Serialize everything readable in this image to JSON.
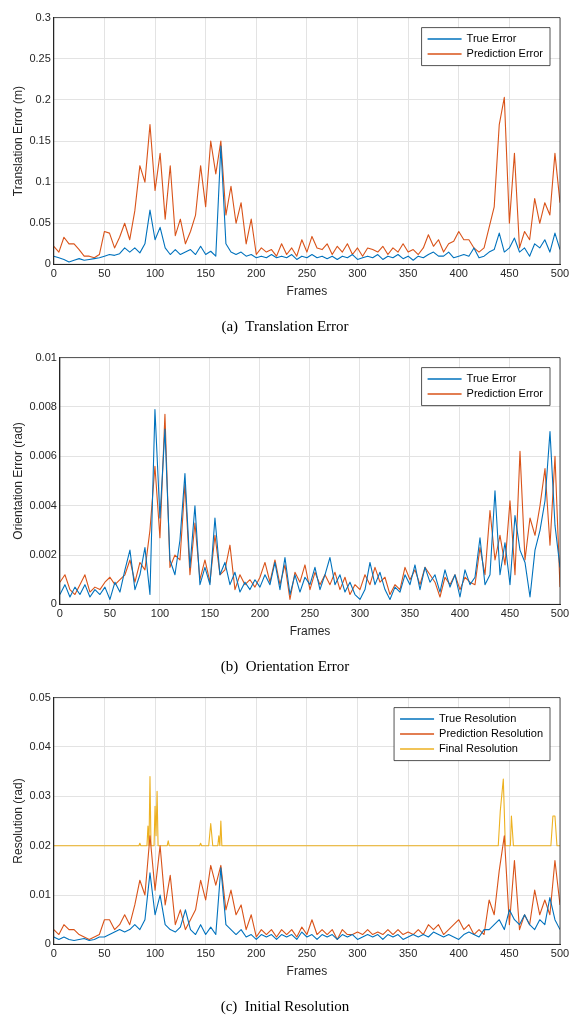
{
  "chart_data": [
    {
      "type": "line",
      "title": "(a)  Translation Error",
      "xlabel": "Frames",
      "ylabel": "Translation Error (m)",
      "xlim": [
        0,
        500
      ],
      "xticks": [
        0,
        50,
        100,
        150,
        200,
        250,
        300,
        350,
        400,
        450,
        500
      ],
      "ylim": [
        0,
        0.3
      ],
      "yticks": [
        0,
        0.05,
        0.1,
        0.15,
        0.2,
        0.25,
        0.3
      ],
      "grid": true,
      "legend": "top right",
      "marker": "none",
      "line_style": "solid",
      "x": [
        0,
        5,
        10,
        15,
        20,
        25,
        30,
        35,
        40,
        45,
        50,
        55,
        60,
        65,
        70,
        75,
        80,
        85,
        90,
        95,
        100,
        105,
        110,
        115,
        120,
        125,
        130,
        135,
        140,
        145,
        150,
        155,
        160,
        165,
        170,
        175,
        180,
        185,
        190,
        195,
        200,
        205,
        210,
        215,
        220,
        225,
        230,
        235,
        240,
        245,
        250,
        255,
        260,
        265,
        270,
        275,
        280,
        285,
        290,
        295,
        300,
        305,
        310,
        315,
        320,
        325,
        330,
        335,
        340,
        345,
        350,
        355,
        360,
        365,
        370,
        375,
        380,
        385,
        390,
        395,
        400,
        405,
        410,
        415,
        420,
        425,
        430,
        435,
        440,
        445,
        450,
        455,
        460,
        465,
        470,
        475,
        480,
        485,
        490,
        495,
        500
      ],
      "series": [
        {
          "name": "True Error",
          "color": "#0072bd",
          "values": [
            0.01,
            0.008,
            0.006,
            0.003,
            0.005,
            0.007,
            0.005,
            0.006,
            0.007,
            0.008,
            0.01,
            0.012,
            0.011,
            0.013,
            0.02,
            0.015,
            0.02,
            0.014,
            0.025,
            0.066,
            0.03,
            0.045,
            0.02,
            0.012,
            0.018,
            0.012,
            0.015,
            0.018,
            0.012,
            0.022,
            0.012,
            0.016,
            0.01,
            0.144,
            0.025,
            0.015,
            0.012,
            0.015,
            0.01,
            0.012,
            0.008,
            0.01,
            0.008,
            0.012,
            0.008,
            0.01,
            0.008,
            0.012,
            0.006,
            0.01,
            0.008,
            0.012,
            0.008,
            0.01,
            0.007,
            0.01,
            0.006,
            0.01,
            0.008,
            0.012,
            0.006,
            0.008,
            0.01,
            0.008,
            0.012,
            0.006,
            0.01,
            0.008,
            0.012,
            0.007,
            0.01,
            0.005,
            0.01,
            0.008,
            0.012,
            0.015,
            0.01,
            0.01,
            0.015,
            0.008,
            0.01,
            0.012,
            0.01,
            0.02,
            0.008,
            0.01,
            0.015,
            0.018,
            0.038,
            0.015,
            0.02,
            0.032,
            0.015,
            0.02,
            0.01,
            0.025,
            0.02,
            0.03,
            0.015,
            0.038,
            0.018
          ]
        },
        {
          "name": "Prediction Error",
          "color": "#d95319",
          "values": [
            0.022,
            0.015,
            0.033,
            0.025,
            0.025,
            0.018,
            0.01,
            0.01,
            0.008,
            0.012,
            0.04,
            0.038,
            0.02,
            0.033,
            0.05,
            0.03,
            0.065,
            0.12,
            0.1,
            0.17,
            0.09,
            0.135,
            0.055,
            0.12,
            0.035,
            0.055,
            0.025,
            0.04,
            0.06,
            0.12,
            0.07,
            0.15,
            0.11,
            0.15,
            0.06,
            0.095,
            0.05,
            0.075,
            0.025,
            0.055,
            0.012,
            0.02,
            0.015,
            0.018,
            0.01,
            0.025,
            0.012,
            0.02,
            0.01,
            0.03,
            0.015,
            0.034,
            0.02,
            0.018,
            0.025,
            0.012,
            0.022,
            0.015,
            0.025,
            0.012,
            0.02,
            0.01,
            0.02,
            0.018,
            0.015,
            0.022,
            0.012,
            0.02,
            0.015,
            0.025,
            0.015,
            0.018,
            0.012,
            0.02,
            0.036,
            0.022,
            0.03,
            0.015,
            0.025,
            0.028,
            0.04,
            0.03,
            0.03,
            0.02,
            0.015,
            0.02,
            0.045,
            0.07,
            0.17,
            0.203,
            0.05,
            0.135,
            0.02,
            0.04,
            0.03,
            0.08,
            0.05,
            0.075,
            0.06,
            0.135,
            0.075
          ]
        }
      ]
    },
    {
      "type": "line",
      "title": "(b)  Orientation Error",
      "xlabel": "Frames",
      "ylabel": "Orientation Error (rad)",
      "xlim": [
        0,
        500
      ],
      "xticks": [
        0,
        50,
        100,
        150,
        200,
        250,
        300,
        350,
        400,
        450,
        500
      ],
      "ylim": [
        0,
        0.01
      ],
      "yticks": [
        0,
        0.002,
        0.004,
        0.006,
        0.008,
        0.01
      ],
      "grid": true,
      "legend": "top right",
      "marker": "none",
      "line_style": "solid",
      "x": [
        0,
        5,
        10,
        15,
        20,
        25,
        30,
        35,
        40,
        45,
        50,
        55,
        60,
        65,
        70,
        75,
        80,
        85,
        90,
        95,
        100,
        105,
        110,
        115,
        120,
        125,
        130,
        135,
        140,
        145,
        150,
        155,
        160,
        165,
        170,
        175,
        180,
        185,
        190,
        195,
        200,
        205,
        210,
        215,
        220,
        225,
        230,
        235,
        240,
        245,
        250,
        255,
        260,
        265,
        270,
        275,
        280,
        285,
        290,
        295,
        300,
        305,
        310,
        315,
        320,
        325,
        330,
        335,
        340,
        345,
        350,
        355,
        360,
        365,
        370,
        375,
        380,
        385,
        390,
        395,
        400,
        405,
        410,
        415,
        420,
        425,
        430,
        435,
        440,
        445,
        450,
        455,
        460,
        465,
        470,
        475,
        480,
        485,
        490,
        495,
        500
      ],
      "series": [
        {
          "name": "True Error",
          "color": "#0072bd",
          "values": [
            0.0004,
            0.0008,
            0.0003,
            0.0007,
            0.0004,
            0.0008,
            0.0003,
            0.0006,
            0.0004,
            0.0007,
            0.0002,
            0.0009,
            0.0005,
            0.0014,
            0.0022,
            0.0006,
            0.0012,
            0.0023,
            0.0004,
            0.0079,
            0.0035,
            0.0071,
            0.0018,
            0.0012,
            0.0026,
            0.0053,
            0.0015,
            0.004,
            0.0008,
            0.0015,
            0.0008,
            0.0035,
            0.0012,
            0.0017,
            0.0008,
            0.0013,
            0.0005,
            0.0009,
            0.0006,
            0.001,
            0.0007,
            0.0012,
            0.0008,
            0.0017,
            0.0006,
            0.0019,
            0.0004,
            0.0012,
            0.0005,
            0.0011,
            0.0008,
            0.0015,
            0.0006,
            0.0012,
            0.0019,
            0.0008,
            0.0012,
            0.0005,
            0.0009,
            0.0004,
            0.0002,
            0.0006,
            0.0017,
            0.0008,
            0.0013,
            0.0006,
            0.0002,
            0.0007,
            0.0005,
            0.0012,
            0.0008,
            0.0016,
            0.0006,
            0.0015,
            0.0009,
            0.0012,
            0.0005,
            0.0014,
            0.0007,
            0.0012,
            0.0003,
            0.0014,
            0.0008,
            0.0011,
            0.0027,
            0.0008,
            0.0012,
            0.0046,
            0.0012,
            0.0025,
            0.0008,
            0.0036,
            0.0022,
            0.0017,
            0.0003,
            0.0022,
            0.003,
            0.0042,
            0.007,
            0.0032,
            0.0015
          ]
        },
        {
          "name": "Prediction Error",
          "color": "#d95319",
          "values": [
            0.0009,
            0.0012,
            0.0006,
            0.0004,
            0.0008,
            0.0012,
            0.0005,
            0.0007,
            0.0006,
            0.0009,
            0.0011,
            0.0008,
            0.001,
            0.0012,
            0.0018,
            0.0009,
            0.0017,
            0.0014,
            0.003,
            0.0056,
            0.0027,
            0.0077,
            0.0015,
            0.002,
            0.0018,
            0.0049,
            0.0012,
            0.0033,
            0.001,
            0.0018,
            0.0009,
            0.0028,
            0.0012,
            0.0014,
            0.0024,
            0.0006,
            0.0012,
            0.0008,
            0.001,
            0.0007,
            0.0011,
            0.0017,
            0.0009,
            0.0018,
            0.0008,
            0.0016,
            0.0002,
            0.0013,
            0.0009,
            0.0016,
            0.0006,
            0.0013,
            0.0008,
            0.0012,
            0.0008,
            0.0013,
            0.0006,
            0.0011,
            0.0004,
            0.0008,
            0.0006,
            0.0012,
            0.0008,
            0.0015,
            0.0009,
            0.0011,
            0.0004,
            0.0008,
            0.0006,
            0.0015,
            0.001,
            0.0014,
            0.0008,
            0.0015,
            0.0012,
            0.0009,
            0.0003,
            0.0011,
            0.0008,
            0.0012,
            0.0006,
            0.0011,
            0.0009,
            0.0008,
            0.0023,
            0.0012,
            0.0038,
            0.0018,
            0.0028,
            0.0016,
            0.0042,
            0.0012,
            0.0062,
            0.0018,
            0.0035,
            0.0028,
            0.004,
            0.0055,
            0.0024,
            0.006,
            0.0007
          ]
        }
      ]
    },
    {
      "type": "line",
      "title": "(c)  Initial Resolution",
      "xlabel": "Frames",
      "ylabel": "Resolution (rad)",
      "xlim": [
        0,
        500
      ],
      "xticks": [
        0,
        50,
        100,
        150,
        200,
        250,
        300,
        350,
        400,
        450,
        500
      ],
      "ylim": [
        0,
        0.05
      ],
      "yticks": [
        0,
        0.01,
        0.02,
        0.03,
        0.04,
        0.05
      ],
      "grid": true,
      "legend": "top right",
      "marker": "none",
      "line_style": "solid",
      "x": [
        0,
        5,
        10,
        15,
        20,
        25,
        30,
        35,
        40,
        45,
        50,
        55,
        60,
        65,
        70,
        75,
        80,
        85,
        90,
        95,
        100,
        105,
        110,
        115,
        120,
        125,
        130,
        135,
        140,
        145,
        150,
        155,
        160,
        165,
        170,
        175,
        180,
        185,
        190,
        195,
        200,
        205,
        210,
        215,
        220,
        225,
        230,
        235,
        240,
        245,
        250,
        255,
        260,
        265,
        270,
        275,
        280,
        285,
        290,
        295,
        300,
        305,
        310,
        315,
        320,
        325,
        330,
        335,
        340,
        345,
        350,
        355,
        360,
        365,
        370,
        375,
        380,
        385,
        390,
        395,
        400,
        405,
        410,
        415,
        420,
        425,
        430,
        435,
        440,
        445,
        450,
        455,
        460,
        465,
        470,
        475,
        480,
        485,
        490,
        495,
        500
      ],
      "series": [
        {
          "name": "True Resolution",
          "color": "#0072bd",
          "values": [
            0.0015,
            0.001,
            0.0015,
            0.001,
            0.0008,
            0.001,
            0.0012,
            0.0008,
            0.001,
            0.0015,
            0.0015,
            0.002,
            0.0025,
            0.003,
            0.0025,
            0.003,
            0.004,
            0.003,
            0.005,
            0.0145,
            0.006,
            0.01,
            0.004,
            0.003,
            0.0025,
            0.0035,
            0.007,
            0.003,
            0.002,
            0.004,
            0.002,
            0.0035,
            0.002,
            0.0155,
            0.004,
            0.003,
            0.002,
            0.003,
            0.0015,
            0.002,
            0.001,
            0.002,
            0.0015,
            0.002,
            0.001,
            0.002,
            0.0015,
            0.002,
            0.001,
            0.0025,
            0.0015,
            0.002,
            0.001,
            0.002,
            0.0015,
            0.002,
            0.001,
            0.002,
            0.0015,
            0.002,
            0.001,
            0.0015,
            0.002,
            0.0015,
            0.002,
            0.001,
            0.002,
            0.0015,
            0.002,
            0.001,
            0.0015,
            0.002,
            0.0015,
            0.002,
            0.0015,
            0.0025,
            0.002,
            0.0015,
            0.002,
            0.0015,
            0.001,
            0.002,
            0.0025,
            0.002,
            0.0015,
            0.003,
            0.003,
            0.004,
            0.005,
            0.003,
            0.007,
            0.005,
            0.004,
            0.006,
            0.004,
            0.003,
            0.005,
            0.004,
            0.0095,
            0.005,
            0.003
          ]
        },
        {
          "name": "Prediction Resolution",
          "color": "#d95319",
          "values": [
            0.003,
            0.002,
            0.004,
            0.003,
            0.003,
            0.002,
            0.0015,
            0.001,
            0.0015,
            0.002,
            0.005,
            0.005,
            0.003,
            0.004,
            0.006,
            0.004,
            0.008,
            0.013,
            0.01,
            0.022,
            0.011,
            0.02,
            0.008,
            0.014,
            0.004,
            0.007,
            0.003,
            0.005,
            0.007,
            0.013,
            0.009,
            0.016,
            0.012,
            0.016,
            0.007,
            0.011,
            0.006,
            0.008,
            0.003,
            0.006,
            0.0015,
            0.003,
            0.002,
            0.003,
            0.0015,
            0.003,
            0.002,
            0.003,
            0.0015,
            0.0035,
            0.002,
            0.005,
            0.002,
            0.003,
            0.002,
            0.003,
            0.001,
            0.003,
            0.002,
            0.002,
            0.0025,
            0.002,
            0.003,
            0.002,
            0.0025,
            0.002,
            0.003,
            0.002,
            0.003,
            0.002,
            0.0025,
            0.002,
            0.003,
            0.002,
            0.004,
            0.003,
            0.004,
            0.002,
            0.003,
            0.004,
            0.005,
            0.003,
            0.004,
            0.002,
            0.003,
            0.002,
            0.009,
            0.006,
            0.015,
            0.022,
            0.004,
            0.017,
            0.003,
            0.006,
            0.004,
            0.011,
            0.006,
            0.009,
            0.006,
            0.017,
            0.008
          ]
        },
        {
          "name": "Final Resolution",
          "color": "#edb120",
          "x": [
            0,
            84,
            85,
            86,
            92,
            93,
            94,
            95,
            96,
            99,
            100,
            101,
            102,
            103,
            112,
            113,
            114,
            144,
            145,
            146,
            153,
            155,
            157,
            162,
            163,
            164,
            165,
            166,
            439,
            441,
            444,
            446,
            451,
            452,
            454,
            491,
            493,
            495,
            497,
            500
          ],
          "values": [
            0.02,
            0.02,
            0.0205,
            0.02,
            0.02,
            0.024,
            0.02,
            0.034,
            0.02,
            0.02,
            0.028,
            0.022,
            0.031,
            0.02,
            0.02,
            0.021,
            0.02,
            0.02,
            0.0205,
            0.02,
            0.02,
            0.0245,
            0.02,
            0.02,
            0.022,
            0.02,
            0.025,
            0.02,
            0.02,
            0.027,
            0.0335,
            0.02,
            0.02,
            0.026,
            0.02,
            0.02,
            0.026,
            0.026,
            0.02,
            0.02
          ]
        }
      ]
    }
  ]
}
